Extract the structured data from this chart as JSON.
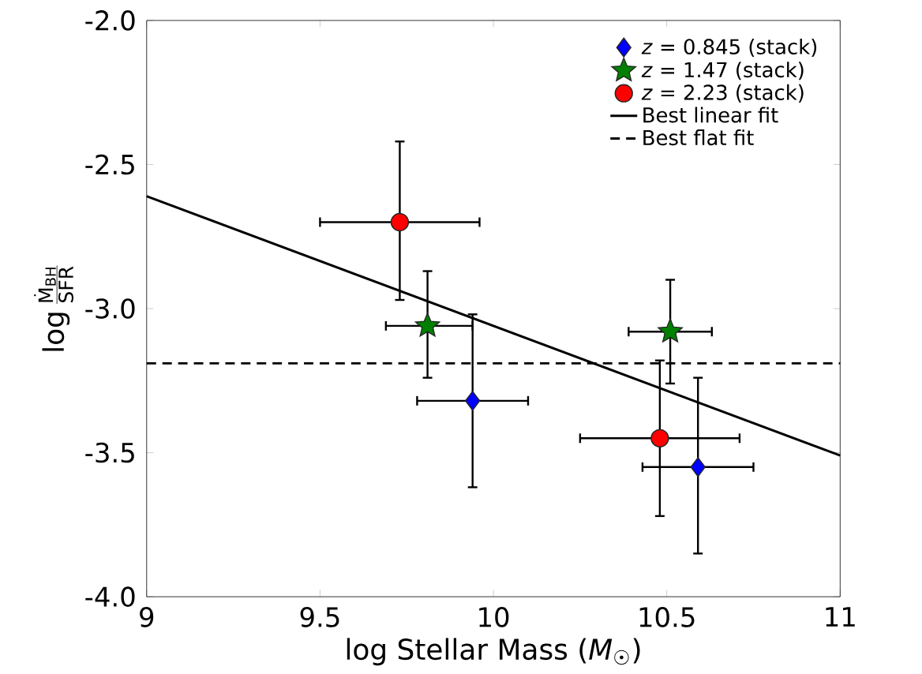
{
  "chart_data": {
    "type": "scatter",
    "xlabel": "log Stellar Mass (*M*$_{☉}$)",
    "ylabel": "\\log\\frac{\\dot{\\mathrm{M}}_{\\mathrm{BH}}}{\\mathrm{SFR}}",
    "xlim": [
      9,
      11
    ],
    "ylim": [
      -4,
      -2
    ],
    "xticks": [
      9,
      9.5,
      10,
      10.5,
      11
    ],
    "yticks": [
      {
        "value": -4,
        "label": "-4.0"
      },
      {
        "value": -3.5,
        "label": "-3.5"
      },
      {
        "value": -3,
        "label": "-3.0"
      },
      {
        "value": -2.5,
        "label": "-2.5"
      },
      {
        "value": -2,
        "label": "-2.0"
      }
    ],
    "legend": "top right",
    "grid": false,
    "series": [
      {
        "name": "*z* = 0.845 (stack)",
        "color": "#0000ff",
        "marker": "diamond",
        "x": [
          9.94,
          10.59
        ],
        "values": [
          -3.32,
          -3.55
        ],
        "errors": [
          [
            -3.62,
            -3.02
          ],
          [
            -3.85,
            -3.24
          ]
        ],
        "xerrors": [
          [
            9.78,
            10.1
          ],
          [
            10.43,
            10.75
          ]
        ]
      },
      {
        "name": "*z* = 1.47 (stack)",
        "color": "#008000",
        "marker": "star",
        "x": [
          9.81,
          10.51
        ],
        "values": [
          -3.06,
          -3.08
        ],
        "errors": [
          [
            -3.24,
            -2.87
          ],
          [
            -3.26,
            -2.9
          ]
        ],
        "xerrors": [
          [
            9.69,
            9.94
          ],
          [
            10.39,
            10.63
          ]
        ]
      },
      {
        "name": "*z* = 2.23 (stack)",
        "color": "#ff0000",
        "marker": "circle",
        "x": [
          9.73,
          10.48
        ],
        "values": [
          -2.7,
          -3.45
        ],
        "errors": [
          [
            -2.97,
            -2.42
          ],
          [
            -3.72,
            -3.18
          ]
        ],
        "xerrors": [
          [
            9.5,
            9.96
          ],
          [
            10.25,
            10.71
          ]
        ]
      },
      {
        "name": "Best linear fit",
        "type": "line",
        "color": "#000000",
        "line_style": "solid",
        "marker": "none",
        "x": [
          9,
          11
        ],
        "values": [
          -2.61,
          -3.51
        ]
      },
      {
        "name": "Best flat fit",
        "type": "line",
        "color": "#000000",
        "line_style": "dashed",
        "marker": "none",
        "x": [
          9,
          11
        ],
        "values": [
          -3.19,
          -3.19
        ]
      }
    ]
  }
}
